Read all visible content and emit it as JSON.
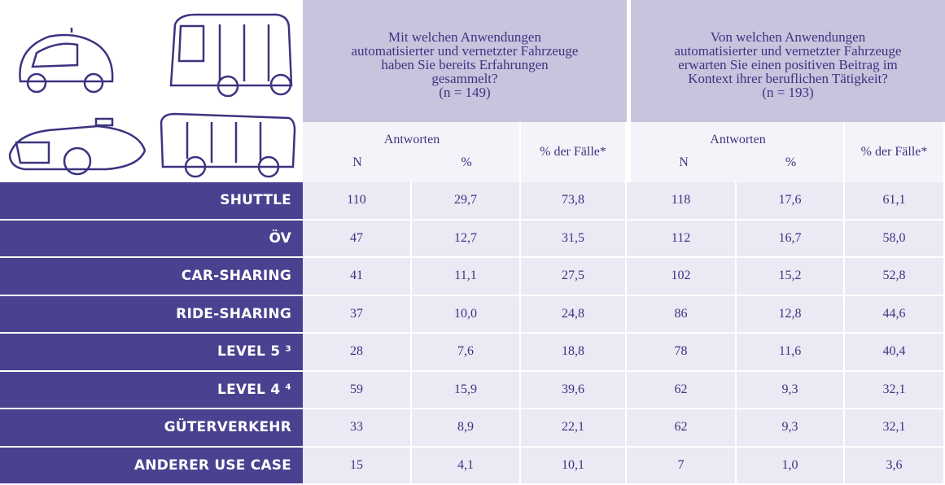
{
  "header": {
    "groups": [
      {
        "question_lines": [
          "Mit welchen Anwendungen",
          "automatisierter und vernetzter Fahrzeuge",
          "haben Sie bereits Erfahrungen",
          "gesammelt?"
        ],
        "n": "(n = 149)",
        "answers": "Antworten",
        "col_n": "N",
        "col_pct": "%",
        "col_cases": "% der Fälle*"
      },
      {
        "question_lines": [
          "Von welchen Anwendungen",
          "automatisierter und vernetzter Fahrzeuge",
          "erwarten Sie einen positiven Beitrag im",
          "Kontext ihrer beruflichen Tätigkeit?"
        ],
        "n": "(n = 193)",
        "answers": "Antworten",
        "col_n": "N",
        "col_pct": "%",
        "col_cases": "% der Fälle*"
      }
    ]
  },
  "table": {
    "rows": [
      [
        "SHUTTLE",
        "110",
        "29,7",
        "73,8",
        "118",
        "17,6",
        "61,1"
      ],
      [
        "ÖV",
        "47",
        "12,7",
        "31,5",
        "112",
        "16,7",
        "58,0"
      ],
      [
        "CAR-SHARING",
        "41",
        "11,1",
        "27,5",
        "102",
        "15,2",
        "52,8"
      ],
      [
        "RIDE-SHARING",
        "37",
        "10,0",
        "24,8",
        "86",
        "12,8",
        "44,6"
      ],
      [
        "LEVEL 5 ³",
        "28",
        "7,6",
        "18,8",
        "78",
        "11,6",
        "40,4"
      ],
      [
        "LEVEL 4 ⁴",
        "59",
        "15,9",
        "39,6",
        "62",
        "9,3",
        "32,1"
      ],
      [
        "GÜTERVERKEHR",
        "33",
        "8,9",
        "22,1",
        "62",
        "9,3",
        "32,1"
      ],
      [
        "ANDERER USE CASE",
        "15",
        "4,1",
        "10,1",
        "7",
        "1,0",
        "3,6"
      ]
    ]
  }
}
